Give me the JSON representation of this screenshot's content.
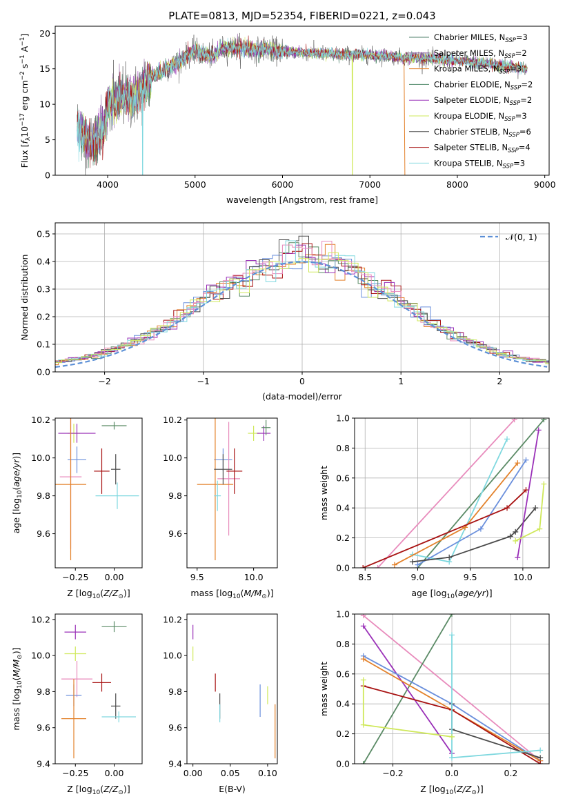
{
  "palette": {
    "Chabrier MILES": "#4d7f6a",
    "Salpeter MILES": "#8e5ea0",
    "Kroupa MILES": "#e3812a",
    "Chabrier ELODIE": "#4f8a6a",
    "Salpeter ELODIE": "#9a30b8",
    "Kroupa ELODIE": "#cfe85a",
    "Chabrier STELIB": "#4a4a4a",
    "Salpeter STELIB": "#a81212",
    "Kroupa STELIB": "#7fd8df",
    "blue": "#6a8fdc",
    "pink": "#e88bbc",
    "green": "#5a8a65",
    "gauss": "#5b8fd6"
  },
  "chart_data": [
    {
      "id": "spectrum",
      "type": "line",
      "title": "PLATE=0813, MJD=52354, FIBERID=0221, z=0.043",
      "xlabel": "wavelength [Angstrom, rest frame]",
      "ylabel": "Flux [f_λ10^-17 erg cm^-2 s^-1 A^-1]",
      "xlim": [
        3400,
        9050
      ],
      "ylim": [
        0,
        21
      ],
      "xticks": [
        4000,
        5000,
        6000,
        7000,
        8000,
        9000
      ],
      "yticks": [
        0,
        5,
        10,
        15,
        20
      ],
      "legend_position": "right",
      "legend": [
        {
          "label": "Chabrier MILES, N",
          "sub": "SSP",
          "n": "=3",
          "color": "#4d7f6a"
        },
        {
          "label": "Salpeter MILES, N",
          "sub": "SSP",
          "n": "=2",
          "color": "#8e5ea0"
        },
        {
          "label": "Kroupa MILES, N",
          "sub": "SSP",
          "n": "=3",
          "color": "#e3812a"
        },
        {
          "label": "Chabrier ELODIE, N",
          "sub": "SSP",
          "n": "=2",
          "color": "#4f8a6a"
        },
        {
          "label": "Salpeter ELODIE, N",
          "sub": "SSP",
          "n": "=2",
          "color": "#9a30b8"
        },
        {
          "label": "Kroupa ELODIE, N",
          "sub": "SSP",
          "n": "=3",
          "color": "#cfe85a"
        },
        {
          "label": "Chabrier STELIB, N",
          "sub": "SSP",
          "n": "=6",
          "color": "#4a4a4a"
        },
        {
          "label": "Salpeter STELIB, N",
          "sub": "SSP",
          "n": "=4",
          "color": "#a81212"
        },
        {
          "label": "Kroupa STELIB, N",
          "sub": "SSP",
          "n": "=3",
          "color": "#7fd8df"
        }
      ],
      "continuum": [
        [
          3650,
          7.0
        ],
        [
          3800,
          4.5
        ],
        [
          3900,
          5.5
        ],
        [
          3950,
          6.5
        ],
        [
          4000,
          10.0
        ],
        [
          4100,
          10.5
        ],
        [
          4200,
          11.2
        ],
        [
          4300,
          10.8
        ],
        [
          4400,
          12.2
        ],
        [
          4500,
          13.8
        ],
        [
          4600,
          14.5
        ],
        [
          4700,
          15.2
        ],
        [
          4800,
          15.8
        ],
        [
          4900,
          16.8
        ],
        [
          5000,
          17.5
        ],
        [
          5100,
          17.0
        ],
        [
          5200,
          16.8
        ],
        [
          5300,
          17.8
        ],
        [
          5400,
          17.9
        ],
        [
          5500,
          18.0
        ],
        [
          5600,
          17.9
        ],
        [
          5700,
          17.6
        ],
        [
          5800,
          17.8
        ],
        [
          5900,
          17.6
        ],
        [
          6000,
          17.5
        ],
        [
          6200,
          17.3
        ],
        [
          6400,
          17.2
        ],
        [
          6600,
          17.1
        ],
        [
          6800,
          17.0
        ],
        [
          7000,
          16.9
        ],
        [
          7200,
          16.8
        ],
        [
          7400,
          16.6
        ],
        [
          7600,
          16.5
        ],
        [
          7800,
          16.3
        ],
        [
          8000,
          16.1
        ],
        [
          8200,
          15.9
        ],
        [
          8400,
          15.6
        ],
        [
          8600,
          15.3
        ],
        [
          8800,
          15.0
        ]
      ],
      "drops": [
        {
          "x": 4400,
          "y": 0,
          "series": "Kroupa STELIB"
        },
        {
          "x": 6800,
          "y": 0,
          "series": "Kroupa ELODIE"
        },
        {
          "x": 7400,
          "y": 0,
          "series": "Kroupa MILES"
        }
      ]
    },
    {
      "id": "residuals",
      "type": "histogram",
      "xlabel": "(data-model)/error",
      "ylabel": "Normed distribution",
      "xlim": [
        -2.5,
        2.5
      ],
      "ylim": [
        0,
        0.54
      ],
      "xticks": [
        -2,
        -1,
        0,
        1,
        2
      ],
      "yticks": [
        0.0,
        0.1,
        0.2,
        0.3,
        0.4,
        0.5
      ],
      "grid": true,
      "legend_position": "top-right",
      "legend": [
        {
          "label": "𝒩(0, 1)",
          "style": "dashed",
          "color": "#5b8fd6"
        }
      ],
      "bin_width": 0.1,
      "n_series": 9
    },
    {
      "id": "Z-age",
      "type": "errorbar",
      "xlabel": "Z [log10(Z/Z⊙)]",
      "ylabel": "age  [log10(age/yr)]",
      "xlim": [
        -0.38,
        0.18
      ],
      "ylim": [
        9.42,
        10.21
      ],
      "xticks": [
        -0.25,
        0.0
      ],
      "yticks": [
        9.6,
        9.8,
        10.0,
        10.2
      ],
      "points": [
        {
          "x": -0.26,
          "y": 10.13,
          "xerr": 0.04,
          "yerr": 0.05,
          "color": "#cfe85a"
        },
        {
          "x": -0.24,
          "y": 10.13,
          "xerr": 0.12,
          "yerr": 0.05,
          "color": "#9a30b8"
        },
        {
          "x": 0.0,
          "y": 10.17,
          "xerr": 0.08,
          "yerr": 0.02,
          "color": "#5a8a65"
        },
        {
          "x": -0.24,
          "y": 9.99,
          "xerr": 0.06,
          "yerr": 0.07,
          "color": "#6a8fdc"
        },
        {
          "x": -0.28,
          "y": 9.9,
          "xerr": 0.07,
          "yerr": 0.38,
          "color": "#e88bbc"
        },
        {
          "x": -0.28,
          "y": 9.86,
          "xerr": 0.1,
          "yerr": 0.4,
          "color": "#e3812a"
        },
        {
          "x": -0.08,
          "y": 9.93,
          "xerr": 0.05,
          "yerr": 0.12,
          "color": "#a81212"
        },
        {
          "x": 0.01,
          "y": 9.94,
          "xerr": 0.03,
          "yerr": 0.08,
          "color": "#4a4a4a"
        },
        {
          "x": 0.02,
          "y": 9.8,
          "xerr": 0.14,
          "yerr": 0.07,
          "color": "#7fd8df"
        }
      ]
    },
    {
      "id": "mass-age",
      "type": "errorbar",
      "xlabel": "mass [log10(M/M⊙)]",
      "ylabel": "",
      "xlim": [
        9.41,
        10.21
      ],
      "ylim": [
        9.42,
        10.21
      ],
      "xticks": [
        9.5,
        10.0
      ],
      "yticks": [
        9.6,
        9.8,
        10.0,
        10.2
      ],
      "points": [
        {
          "x": 10.0,
          "y": 10.13,
          "xerr": 0.05,
          "yerr": 0.04,
          "color": "#cfe85a"
        },
        {
          "x": 10.09,
          "y": 10.13,
          "xerr": 0.06,
          "yerr": 0.04,
          "color": "#9a30b8"
        },
        {
          "x": 10.11,
          "y": 10.16,
          "xerr": 0.04,
          "yerr": 0.04,
          "color": "#5a8a65"
        },
        {
          "x": 9.73,
          "y": 9.99,
          "xerr": 0.08,
          "yerr": 0.06,
          "color": "#6a8fdc"
        },
        {
          "x": 9.78,
          "y": 9.89,
          "xerr": 0.1,
          "yerr": 0.3,
          "color": "#e88bbc"
        },
        {
          "x": 9.66,
          "y": 9.86,
          "xerr": 0.16,
          "yerr": 0.4,
          "color": "#e3812a"
        },
        {
          "x": 9.83,
          "y": 9.93,
          "xerr": 0.07,
          "yerr": 0.12,
          "color": "#a81212"
        },
        {
          "x": 9.73,
          "y": 9.94,
          "xerr": 0.08,
          "yerr": 0.08,
          "color": "#4a4a4a"
        },
        {
          "x": 9.68,
          "y": 9.8,
          "xerr": 0.03,
          "yerr": 0.08,
          "color": "#7fd8df"
        }
      ]
    },
    {
      "id": "age-weight",
      "type": "line",
      "xlabel": "age  [log10(age/yr)]",
      "ylabel": "mass weight",
      "xlim": [
        8.4,
        10.25
      ],
      "ylim": [
        0,
        1.0
      ],
      "xticks": [
        8.5,
        9.0,
        9.5,
        10.0
      ],
      "yticks": [
        0.0,
        0.2,
        0.4,
        0.6,
        0.8,
        1.0
      ],
      "grid": true,
      "series": [
        {
          "color": "#e88bbc",
          "x": [
            8.62,
            9.92
          ],
          "y": [
            0.0,
            0.99
          ]
        },
        {
          "color": "#5a8a65",
          "x": [
            9.0,
            10.2
          ],
          "y": [
            0.0,
            0.99
          ]
        },
        {
          "color": "#7fd8df",
          "x": [
            8.95,
            9.3,
            9.85
          ],
          "y": [
            0.09,
            0.04,
            0.86
          ]
        },
        {
          "color": "#6a8fdc",
          "x": [
            9.0,
            9.6,
            10.03
          ],
          "y": [
            0.02,
            0.26,
            0.72
          ]
        },
        {
          "color": "#e3812a",
          "x": [
            8.78,
            9.45,
            9.95
          ],
          "y": [
            0.02,
            0.27,
            0.7
          ]
        },
        {
          "color": "#a81212",
          "x": [
            8.48,
            9.85,
            10.03
          ],
          "y": [
            0.0,
            0.4,
            0.52
          ]
        },
        {
          "color": "#4a4a4a",
          "x": [
            8.95,
            9.3,
            9.88,
            9.93,
            10.12
          ],
          "y": [
            0.04,
            0.07,
            0.21,
            0.24,
            0.4
          ]
        },
        {
          "color": "#9a30b8",
          "x": [
            9.95,
            10.15
          ],
          "y": [
            0.07,
            0.92
          ]
        },
        {
          "color": "#cfe85a",
          "x": [
            9.93,
            10.16,
            10.2
          ],
          "y": [
            0.18,
            0.26,
            0.56
          ]
        }
      ]
    },
    {
      "id": "Z-mass",
      "type": "errorbar",
      "xlabel": "Z [log10(Z/Z⊙)]",
      "ylabel": "mass [log10(M/M⊙)]",
      "xlim": [
        -0.38,
        0.18
      ],
      "ylim": [
        9.4,
        10.23
      ],
      "xticks": [
        -0.25,
        0.0
      ],
      "yticks": [
        9.4,
        9.6,
        9.8,
        10.0,
        10.2
      ],
      "points": [
        {
          "x": -0.25,
          "y": 10.13,
          "xerr": 0.07,
          "yerr": 0.04,
          "color": "#9a30b8"
        },
        {
          "x": 0.0,
          "y": 10.16,
          "xerr": 0.08,
          "yerr": 0.03,
          "color": "#5a8a65"
        },
        {
          "x": -0.25,
          "y": 10.01,
          "xerr": 0.07,
          "yerr": 0.04,
          "color": "#cfe85a"
        },
        {
          "x": -0.24,
          "y": 9.87,
          "xerr": 0.1,
          "yerr": 0.1,
          "color": "#e88bbc"
        },
        {
          "x": -0.08,
          "y": 9.85,
          "xerr": 0.06,
          "yerr": 0.05,
          "color": "#a81212"
        },
        {
          "x": -0.26,
          "y": 9.78,
          "xerr": 0.05,
          "yerr": 0.06,
          "color": "#6a8fdc"
        },
        {
          "x": -0.26,
          "y": 9.65,
          "xerr": 0.08,
          "yerr": 0.22,
          "color": "#e3812a"
        },
        {
          "x": 0.01,
          "y": 9.72,
          "xerr": 0.03,
          "yerr": 0.07,
          "color": "#4a4a4a"
        },
        {
          "x": 0.03,
          "y": 9.66,
          "xerr": 0.11,
          "yerr": 0.03,
          "color": "#7fd8df"
        }
      ]
    },
    {
      "id": "ebv-mass",
      "type": "errorbar",
      "xlabel": "E(B-V)",
      "ylabel": "",
      "xlim": [
        -0.008,
        0.113
      ],
      "ylim": [
        9.4,
        10.23
      ],
      "xticks": [
        0.0,
        0.05,
        0.1
      ],
      "yticks": [
        9.4,
        9.6,
        9.8,
        10.0,
        10.2
      ],
      "points": [
        {
          "x": 0.0,
          "y": 10.13,
          "xerr": 0,
          "yerr": 0.04,
          "color": "#9a30b8"
        },
        {
          "x": 0.0,
          "y": 10.01,
          "xerr": 0,
          "yerr": 0.04,
          "color": "#cfe85a"
        },
        {
          "x": 0.03,
          "y": 9.85,
          "xerr": 0,
          "yerr": 0.05,
          "color": "#a81212"
        },
        {
          "x": 0.036,
          "y": 9.72,
          "xerr": 0,
          "yerr": 0.07,
          "color": "#4a4a4a"
        },
        {
          "x": 0.036,
          "y": 9.68,
          "xerr": 0,
          "yerr": 0.05,
          "color": "#7fd8df"
        },
        {
          "x": 0.09,
          "y": 9.75,
          "xerr": 0,
          "yerr": 0.09,
          "color": "#6a8fdc"
        },
        {
          "x": 0.1,
          "y": 9.78,
          "xerr": 0,
          "yerr": 0.05,
          "color": "#cfe85a"
        },
        {
          "x": 0.11,
          "y": 9.58,
          "xerr": 0,
          "yerr": 0.15,
          "color": "#e3812a"
        }
      ]
    },
    {
      "id": "Z-weight",
      "type": "line",
      "xlabel": "Z [log10(Z/Z⊙)]",
      "ylabel": "mass weight",
      "xlim": [
        -0.33,
        0.33
      ],
      "ylim": [
        0,
        1.0
      ],
      "xticks": [
        -0.2,
        0.0,
        0.2
      ],
      "yticks": [
        0.0,
        0.2,
        0.4,
        0.6,
        0.8,
        1.0
      ],
      "grid": true,
      "series": [
        {
          "color": "#e88bbc",
          "x": [
            -0.3,
            0.3
          ],
          "y": [
            0.99,
            0.02
          ]
        },
        {
          "color": "#5a8a65",
          "x": [
            -0.3,
            0.0
          ],
          "y": [
            0.0,
            1.0
          ]
        },
        {
          "color": "#9a30b8",
          "x": [
            -0.3,
            0.0
          ],
          "y": [
            0.92,
            0.07
          ]
        },
        {
          "color": "#6a8fdc",
          "x": [
            -0.3,
            0.0,
            0.3
          ],
          "y": [
            0.72,
            0.4,
            0.02
          ]
        },
        {
          "color": "#e3812a",
          "x": [
            -0.3,
            0.0,
            0.3
          ],
          "y": [
            0.7,
            0.36,
            0.02
          ]
        },
        {
          "color": "#a81212",
          "x": [
            -0.3,
            0.0,
            0.3
          ],
          "y": [
            0.52,
            0.36,
            0.0
          ]
        },
        {
          "color": "#4a4a4a",
          "x": [
            0.0,
            0.0,
            0.3
          ],
          "y": [
            0.4,
            0.23,
            0.04
          ]
        },
        {
          "color": "#7fd8df",
          "x": [
            0.0,
            0.0,
            0.3
          ],
          "y": [
            0.86,
            0.04,
            0.09
          ]
        },
        {
          "color": "#cfe85a",
          "x": [
            -0.3,
            -0.3,
            0.0
          ],
          "y": [
            0.56,
            0.26,
            0.18
          ]
        }
      ]
    }
  ]
}
